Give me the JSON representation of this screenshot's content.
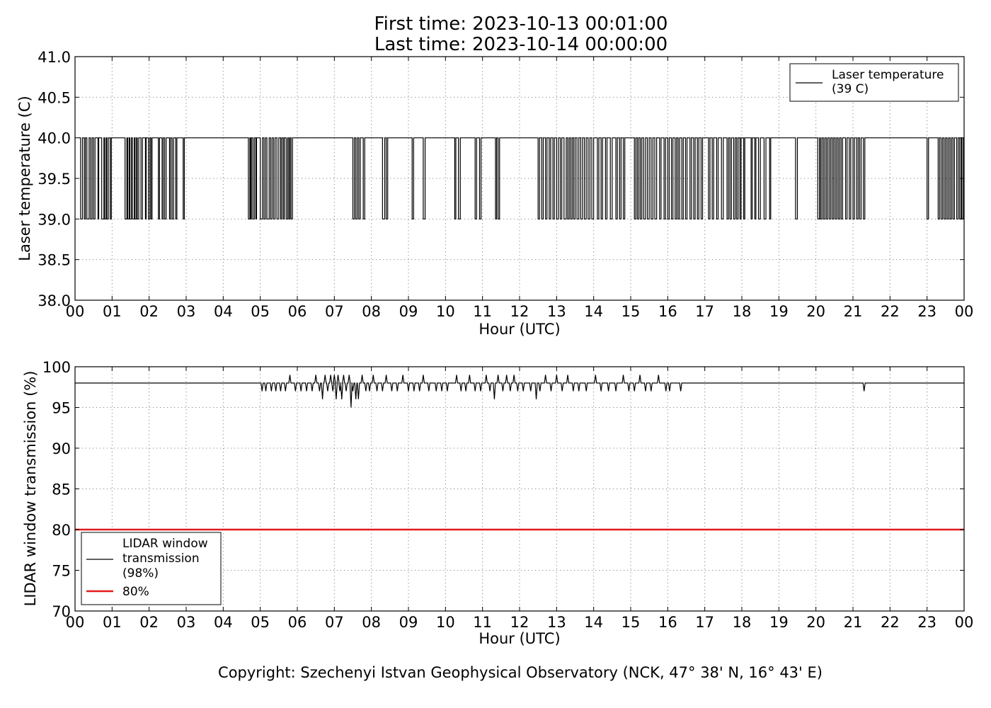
{
  "title_lines": [
    "First time: 2023-10-13 00:01:00",
    "Last time: 2023-10-14 00:00:00"
  ],
  "copyright": "Copyright: Szechenyi Istvan Geophysical Observatory (NCK, 47° 38' N, 16° 43' E)",
  "chart_data": [
    {
      "type": "line",
      "xlabel": "Hour (UTC)",
      "ylabel": "Laser temperature (C)",
      "xlim": [
        0,
        24
      ],
      "ylim": [
        38.0,
        41.0
      ],
      "grid": true,
      "legend_position": "top-right",
      "x_tick_labels": [
        "00",
        "01",
        "02",
        "03",
        "04",
        "05",
        "06",
        "07",
        "08",
        "09",
        "10",
        "11",
        "12",
        "13",
        "14",
        "15",
        "16",
        "17",
        "18",
        "19",
        "20",
        "21",
        "22",
        "23",
        "00"
      ],
      "y_tick_labels": [
        "38.0",
        "38.5",
        "39.0",
        "39.5",
        "40.0",
        "40.5",
        "41.0"
      ],
      "y_ticks": [
        38.0,
        38.5,
        39.0,
        39.5,
        40.0,
        40.5,
        41.0
      ],
      "series": [
        {
          "name": "Laser temperature\n(39 C)",
          "color": "#000000",
          "baseline": 40.0,
          "dips_to": 39.0,
          "dip_intervals_hours": [
            [
              0.15,
              0.2
            ],
            [
              0.25,
              0.28
            ],
            [
              0.32,
              0.38
            ],
            [
              0.42,
              0.46
            ],
            [
              0.5,
              0.54
            ],
            [
              0.62,
              0.64
            ],
            [
              0.72,
              0.78
            ],
            [
              0.8,
              0.84
            ],
            [
              0.86,
              0.9
            ],
            [
              0.95,
              0.98
            ],
            [
              1.35,
              1.4
            ],
            [
              1.42,
              1.46
            ],
            [
              1.48,
              1.52
            ],
            [
              1.55,
              1.6
            ],
            [
              1.62,
              1.66
            ],
            [
              1.68,
              1.72
            ],
            [
              1.78,
              1.82
            ],
            [
              1.9,
              1.92
            ],
            [
              1.98,
              2.02
            ],
            [
              2.05,
              2.08
            ],
            [
              2.25,
              2.28
            ],
            [
              2.35,
              2.38
            ],
            [
              2.42,
              2.46
            ],
            [
              2.55,
              2.58
            ],
            [
              2.62,
              2.66
            ],
            [
              2.72,
              2.75
            ],
            [
              2.92,
              2.95
            ],
            [
              4.68,
              4.72
            ],
            [
              4.74,
              4.76
            ],
            [
              4.8,
              4.84
            ],
            [
              4.88,
              4.9
            ],
            [
              5.0,
              5.06
            ],
            [
              5.1,
              5.14
            ],
            [
              5.18,
              5.24
            ],
            [
              5.28,
              5.32
            ],
            [
              5.36,
              5.4
            ],
            [
              5.45,
              5.5
            ],
            [
              5.55,
              5.58
            ],
            [
              5.62,
              5.65
            ],
            [
              5.7,
              5.74
            ],
            [
              5.77,
              5.8
            ],
            [
              5.83,
              5.87
            ],
            [
              7.5,
              7.54
            ],
            [
              7.58,
              7.62
            ],
            [
              7.66,
              7.7
            ],
            [
              7.78,
              7.82
            ],
            [
              8.3,
              8.36
            ],
            [
              8.4,
              8.44
            ],
            [
              9.1,
              9.14
            ],
            [
              9.4,
              9.45
            ],
            [
              10.25,
              10.28
            ],
            [
              10.35,
              10.4
            ],
            [
              10.8,
              10.84
            ],
            [
              10.92,
              10.96
            ],
            [
              11.35,
              11.38
            ],
            [
              11.42,
              11.46
            ],
            [
              12.5,
              12.54
            ],
            [
              12.6,
              12.64
            ],
            [
              12.7,
              12.74
            ],
            [
              12.8,
              12.84
            ],
            [
              12.9,
              12.94
            ],
            [
              13.0,
              13.05
            ],
            [
              13.1,
              13.14
            ],
            [
              13.2,
              13.26
            ],
            [
              13.3,
              13.34
            ],
            [
              13.38,
              13.42
            ],
            [
              13.46,
              13.5
            ],
            [
              13.55,
              13.6
            ],
            [
              13.65,
              13.7
            ],
            [
              13.75,
              13.8
            ],
            [
              13.85,
              13.9
            ],
            [
              13.95,
              14.0
            ],
            [
              14.1,
              14.14
            ],
            [
              14.2,
              14.24
            ],
            [
              14.32,
              14.36
            ],
            [
              14.45,
              14.5
            ],
            [
              14.6,
              14.64
            ],
            [
              14.7,
              14.74
            ],
            [
              14.8,
              14.84
            ],
            [
              15.1,
              15.14
            ],
            [
              15.18,
              15.22
            ],
            [
              15.26,
              15.3
            ],
            [
              15.35,
              15.4
            ],
            [
              15.45,
              15.5
            ],
            [
              15.55,
              15.6
            ],
            [
              15.65,
              15.7
            ],
            [
              15.78,
              15.82
            ],
            [
              15.9,
              15.94
            ],
            [
              16.0,
              16.04
            ],
            [
              16.1,
              16.14
            ],
            [
              16.2,
              16.24
            ],
            [
              16.28,
              16.32
            ],
            [
              16.38,
              16.42
            ],
            [
              16.48,
              16.52
            ],
            [
              16.6,
              16.64
            ],
            [
              16.7,
              16.74
            ],
            [
              16.8,
              16.84
            ],
            [
              16.9,
              16.94
            ],
            [
              17.1,
              17.14
            ],
            [
              17.2,
              17.24
            ],
            [
              17.32,
              17.36
            ],
            [
              17.45,
              17.5
            ],
            [
              17.6,
              17.64
            ],
            [
              17.68,
              17.72
            ],
            [
              17.78,
              17.82
            ],
            [
              17.86,
              17.9
            ],
            [
              17.95,
              17.98
            ],
            [
              18.05,
              18.08
            ],
            [
              18.25,
              18.28
            ],
            [
              18.35,
              18.38
            ],
            [
              18.45,
              18.5
            ],
            [
              18.6,
              18.65
            ],
            [
              18.75,
              18.78
            ],
            [
              19.45,
              19.5
            ],
            [
              20.05,
              20.1
            ],
            [
              20.12,
              20.16
            ],
            [
              20.2,
              20.24
            ],
            [
              20.28,
              20.32
            ],
            [
              20.36,
              20.4
            ],
            [
              20.44,
              20.48
            ],
            [
              20.52,
              20.56
            ],
            [
              20.6,
              20.64
            ],
            [
              20.68,
              20.72
            ],
            [
              20.8,
              20.84
            ],
            [
              20.9,
              20.94
            ],
            [
              21.0,
              21.04
            ],
            [
              21.1,
              21.14
            ],
            [
              21.18,
              21.22
            ],
            [
              21.28,
              21.32
            ],
            [
              23.0,
              23.04
            ],
            [
              23.3,
              23.34
            ],
            [
              23.38,
              23.42
            ],
            [
              23.46,
              23.5
            ],
            [
              23.54,
              23.58
            ],
            [
              23.62,
              23.66
            ],
            [
              23.7,
              23.74
            ],
            [
              23.8,
              23.84
            ],
            [
              23.88,
              23.92
            ],
            [
              23.94,
              23.98
            ]
          ]
        }
      ]
    },
    {
      "type": "line",
      "xlabel": "Hour (UTC)",
      "ylabel": "LIDAR window transmission (%)",
      "xlim": [
        0,
        24
      ],
      "ylim": [
        70,
        100
      ],
      "grid": true,
      "legend_position": "lower-left",
      "x_tick_labels": [
        "00",
        "01",
        "02",
        "03",
        "04",
        "05",
        "06",
        "07",
        "08",
        "09",
        "10",
        "11",
        "12",
        "13",
        "14",
        "15",
        "16",
        "17",
        "18",
        "19",
        "20",
        "21",
        "22",
        "23",
        "00"
      ],
      "y_tick_labels": [
        "70",
        "75",
        "80",
        "85",
        "90",
        "95",
        "100"
      ],
      "y_ticks": [
        70,
        75,
        80,
        85,
        90,
        95,
        100
      ],
      "series": [
        {
          "name": "LIDAR window\ntransmission\n(98%)",
          "color": "#000000",
          "baseline": 98,
          "excursions": [
            [
              5.05,
              97
            ],
            [
              5.15,
              97
            ],
            [
              5.3,
              97
            ],
            [
              5.42,
              97
            ],
            [
              5.55,
              97
            ],
            [
              5.68,
              97
            ],
            [
              5.8,
              99
            ],
            [
              5.95,
              97
            ],
            [
              6.1,
              97
            ],
            [
              6.25,
              97
            ],
            [
              6.4,
              97
            ],
            [
              6.5,
              99
            ],
            [
              6.6,
              97
            ],
            [
              6.68,
              96
            ],
            [
              6.75,
              99
            ],
            [
              6.82,
              97
            ],
            [
              6.9,
              99
            ],
            [
              6.96,
              97
            ],
            [
              7.0,
              99
            ],
            [
              7.05,
              96
            ],
            [
              7.1,
              99
            ],
            [
              7.15,
              97
            ],
            [
              7.2,
              96
            ],
            [
              7.25,
              99
            ],
            [
              7.32,
              97
            ],
            [
              7.4,
              99
            ],
            [
              7.45,
              95
            ],
            [
              7.5,
              97
            ],
            [
              7.58,
              96
            ],
            [
              7.65,
              96
            ],
            [
              7.75,
              99
            ],
            [
              7.85,
              97
            ],
            [
              7.95,
              97
            ],
            [
              8.05,
              99
            ],
            [
              8.15,
              97
            ],
            [
              8.3,
              97
            ],
            [
              8.4,
              99
            ],
            [
              8.55,
              97
            ],
            [
              8.7,
              97
            ],
            [
              8.85,
              99
            ],
            [
              9.0,
              97
            ],
            [
              9.15,
              97
            ],
            [
              9.3,
              97
            ],
            [
              9.4,
              99
            ],
            [
              9.55,
              97
            ],
            [
              9.75,
              97
            ],
            [
              9.9,
              97
            ],
            [
              10.05,
              97
            ],
            [
              10.3,
              99
            ],
            [
              10.42,
              97
            ],
            [
              10.55,
              97
            ],
            [
              10.65,
              99
            ],
            [
              10.8,
              97
            ],
            [
              10.95,
              97
            ],
            [
              11.1,
              99
            ],
            [
              11.2,
              97
            ],
            [
              11.32,
              96
            ],
            [
              11.42,
              99
            ],
            [
              11.55,
              97
            ],
            [
              11.65,
              99
            ],
            [
              11.75,
              97
            ],
            [
              11.85,
              99
            ],
            [
              11.95,
              97
            ],
            [
              12.1,
              97
            ],
            [
              12.3,
              97
            ],
            [
              12.45,
              96
            ],
            [
              12.55,
              97
            ],
            [
              12.7,
              99
            ],
            [
              12.85,
              97
            ],
            [
              13.0,
              99
            ],
            [
              13.15,
              97
            ],
            [
              13.3,
              99
            ],
            [
              13.45,
              97
            ],
            [
              13.6,
              97
            ],
            [
              13.8,
              97
            ],
            [
              14.05,
              99
            ],
            [
              14.2,
              97
            ],
            [
              14.4,
              97
            ],
            [
              14.6,
              97
            ],
            [
              14.8,
              99
            ],
            [
              14.95,
              97
            ],
            [
              15.1,
              97
            ],
            [
              15.25,
              99
            ],
            [
              15.4,
              97
            ],
            [
              15.55,
              97
            ],
            [
              15.75,
              99
            ],
            [
              15.95,
              97
            ],
            [
              16.05,
              97
            ],
            [
              16.35,
              97
            ],
            [
              21.3,
              97
            ]
          ]
        },
        {
          "name": "80%",
          "color": "#e31a1c",
          "constant": 80
        }
      ]
    }
  ]
}
